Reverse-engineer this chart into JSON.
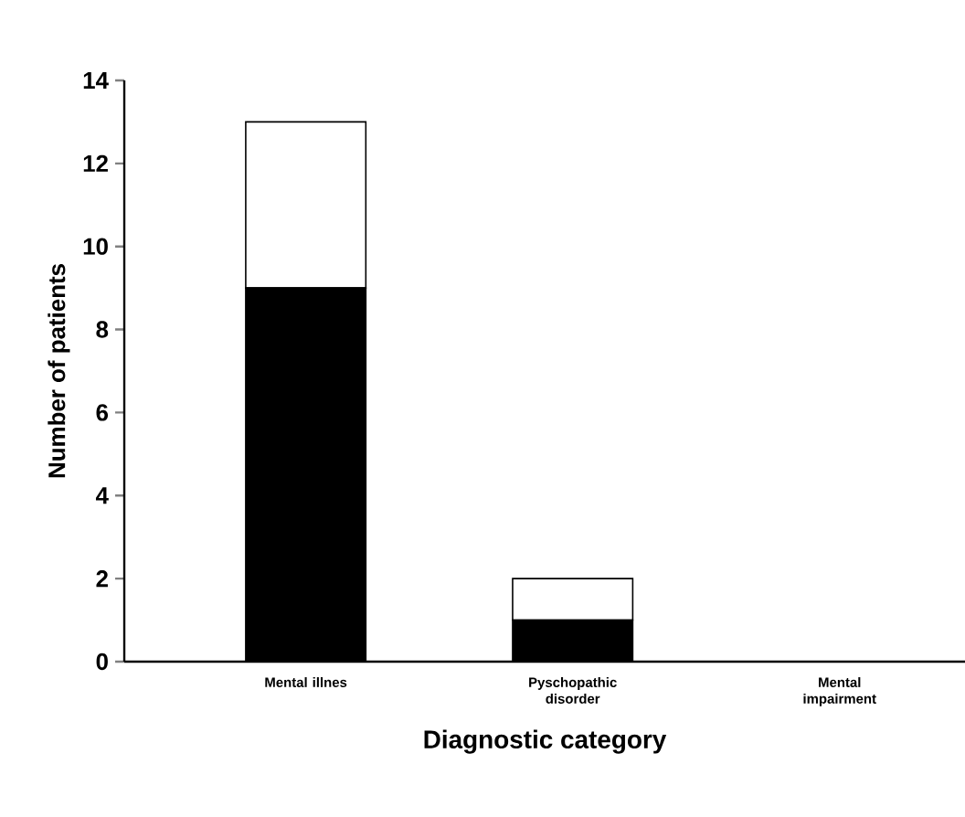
{
  "chart_data": {
    "type": "bar",
    "stacked": true,
    "xlabel": "Diagnostic category",
    "ylabel": "Number of patients",
    "categories": [
      "Mental illnes",
      "Pyschopathic disorder",
      "Mental impairment"
    ],
    "series": [
      {
        "color": "#000000",
        "values": [
          9,
          1,
          0
        ]
      },
      {
        "color": "#ffffff",
        "values": [
          4,
          1,
          0
        ]
      }
    ],
    "ylim": [
      0,
      14
    ],
    "yticks": [
      0,
      2,
      4,
      6,
      8,
      10,
      12,
      14
    ]
  }
}
